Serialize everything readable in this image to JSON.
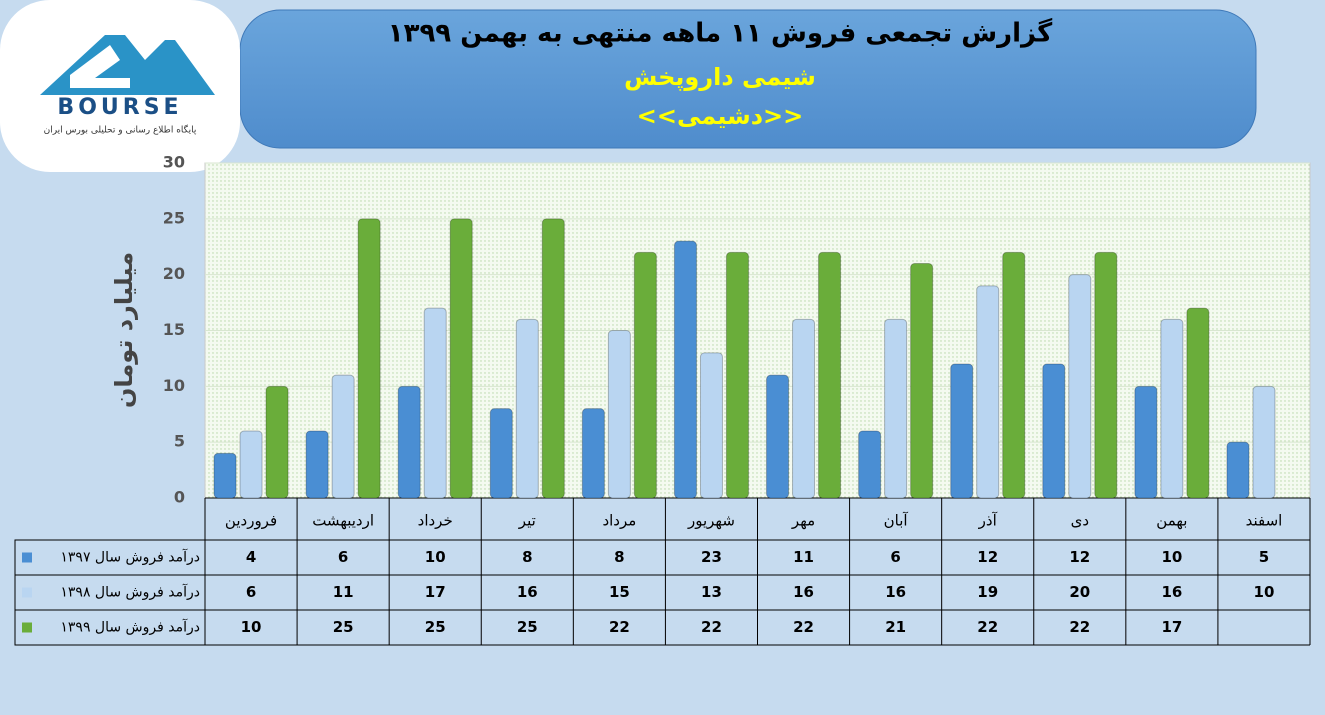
{
  "chart_data": {
    "type": "bar",
    "title": "گزارش تجمعی فروش ۱۱ ماهه منتهی به بهمن ۱۳۹۹",
    "subtitle": "شیمی داروپخش",
    "symbol": "<<دشیمی>>",
    "logo_text": "BOURSE",
    "logo_caption": "پایگاه اطلاع رسانی و تحلیلی بورس ایران",
    "y_label": "میلیارد تومان",
    "categories": [
      "فروردین",
      "اردیبهشت",
      "خرداد",
      "تیر",
      "مرداد",
      "شهریور",
      "مهر",
      "آبان",
      "آذر",
      "دی",
      "بهمن",
      "اسفند"
    ],
    "series": [
      {
        "name": "درآمد فروش سال ۱۳۹۷",
        "color": "#4a8ed3",
        "values": [
          4,
          6,
          10,
          8,
          8,
          23,
          11,
          6,
          12,
          12,
          10,
          5
        ]
      },
      {
        "name": "درآمد فروش سال ۱۳۹۸",
        "color": "#b9d5f1",
        "values": [
          6,
          11,
          17,
          16,
          15,
          13,
          16,
          16,
          19,
          20,
          16,
          10
        ]
      },
      {
        "name": "درآمد فروش سال ۱۳۹۹",
        "color": "#6aad3a",
        "values": [
          10,
          25,
          25,
          25,
          22,
          22,
          22,
          21,
          22,
          22,
          17,
          null
        ]
      }
    ],
    "ylim": [
      0,
      30
    ],
    "yticks": [
      0,
      5,
      10,
      15,
      20,
      25,
      30
    ],
    "grid": true
  }
}
